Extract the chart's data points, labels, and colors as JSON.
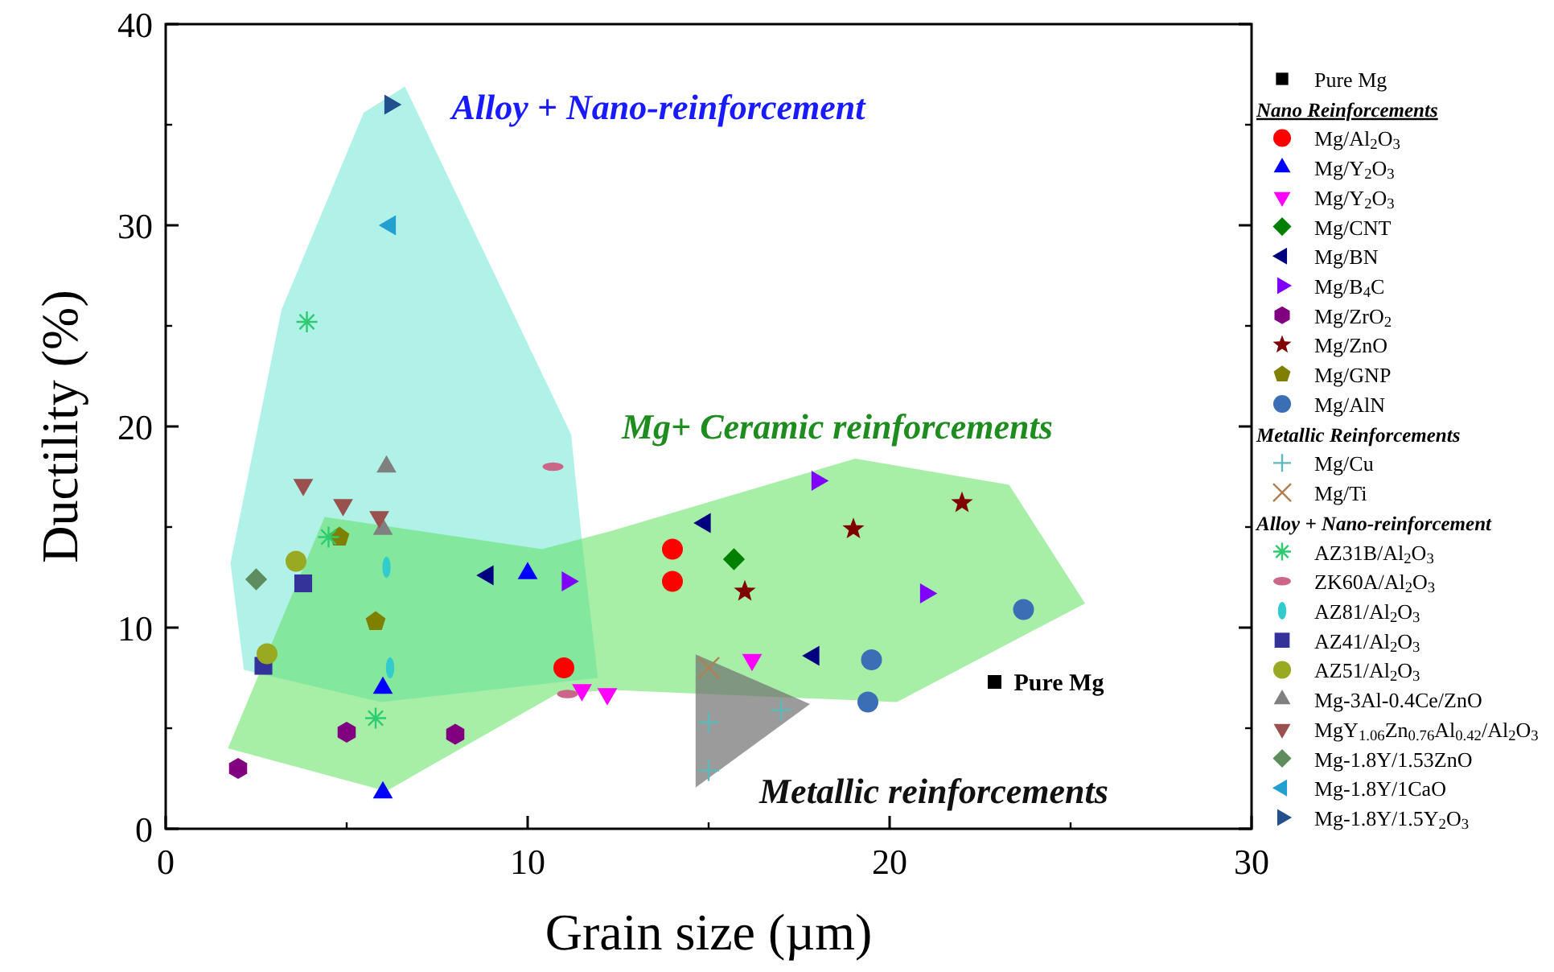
{
  "chart_data": {
    "type": "scatter",
    "xlabel": "Grain size (µm)",
    "ylabel": "Ductility (%)",
    "xlim": [
      0,
      30
    ],
    "ylim": [
      0,
      40
    ],
    "xticks": [
      0,
      10,
      20,
      30
    ],
    "yticks": [
      0,
      10,
      20,
      30,
      40
    ],
    "grid": false,
    "legend": "right",
    "annotations": [
      "Alloy + Nano-reinforcement",
      "Mg+ Ceramic reinforcements",
      "Metallic reinforcements",
      {
        "text": "Pure Mg",
        "x": 22.9,
        "y": 7.3
      },
      "Nano Reinforcements",
      "Metallic Reinforcements",
      "Alloy + Nano-reinforcement"
    ],
    "series": [
      {
        "name": "Pure Mg",
        "color": "#000000",
        "marker": "square",
        "x": [
          22.9
        ],
        "values": [
          7.3
        ]
      },
      {
        "name": "Mg/Al$_{2}$O$_{3}$",
        "color": "#ff0000",
        "marker": "circle",
        "x": [
          14,
          14,
          11
        ],
        "values": [
          13.9,
          12.3,
          8
        ]
      },
      {
        "name": "Mg/Y$_{2}$O$_{3}$",
        "color": "#0000ff",
        "marker": "triangle",
        "x": [
          10,
          6,
          6
        ],
        "values": [
          12.7,
          7,
          1.8
        ]
      },
      {
        "name": "Mg/Y$_{2}$O$_{3}$",
        "color": "#ff00ff",
        "marker": "triangle-down",
        "x": [
          11.5,
          12.2,
          16.2
        ],
        "values": [
          6.9,
          6.7,
          8.4
        ]
      },
      {
        "name": "Mg/CNT",
        "color": "#008000",
        "marker": "diamond",
        "x": [
          15.7
        ],
        "values": [
          13.4
        ]
      },
      {
        "name": "Mg/BN",
        "color": "#000080",
        "marker": "triangle-left",
        "x": [
          8.9,
          14.9,
          17.9
        ],
        "values": [
          12.6,
          15.2,
          8.6
        ]
      },
      {
        "name": "Mg/B$_{4}$C",
        "color": "#7f00ff",
        "marker": "triangle-right",
        "x": [
          11.1,
          18,
          21
        ],
        "values": [
          12.3,
          17.3,
          11.7
        ]
      },
      {
        "name": "Mg/ZrO$_{2}$",
        "color": "#800080",
        "x": [
          2,
          5,
          8
        ],
        "values": [
          3,
          4.8,
          4.7
        ]
      },
      {
        "name": "Mg/ZnO",
        "color": "#800000",
        "marker": "star",
        "x": [
          19,
          22,
          16
        ],
        "values": [
          14.9,
          16.2,
          11.8
        ]
      },
      {
        "name": "Mg/GNP",
        "color": "#808000",
        "x": [
          4.8,
          5.8
        ],
        "values": [
          14.5,
          10.3
        ]
      },
      {
        "name": "Mg/AlN",
        "color": "#3a6fb5",
        "marker": "circle",
        "x": [
          19.5,
          19.4,
          23.7
        ],
        "values": [
          8.4,
          6.3,
          10.9
        ]
      },
      {
        "name": "Mg/Cu",
        "color": "#5fb8b8",
        "marker": "cross",
        "x": [
          15,
          15,
          17
        ],
        "values": [
          5.3,
          2.9,
          5.9
        ]
      },
      {
        "name": "Mg/Ti",
        "color": "#b08050",
        "x": [
          15
        ],
        "values": [
          8
        ]
      },
      {
        "name": "AZ31B/Al$_{2}$O$_{3}$",
        "color": "#2ecc71",
        "x": [
          3.9,
          4.5,
          5.8
        ],
        "values": [
          25.2,
          14.5,
          5.5
        ]
      },
      {
        "name": "ZK60A/Al$_{2}$O$_{3}$",
        "color": "#cc6688",
        "x": [
          10.7,
          11.1
        ],
        "values": [
          18,
          6.7
        ]
      },
      {
        "name": "AZ81/Al$_{2}$O$_{3}$",
        "color": "#33cccc",
        "x": [
          6.1,
          6.2
        ],
        "values": [
          13,
          8
        ]
      },
      {
        "name": "AZ41/Al$_{2}$O$_{3}$",
        "color": "#333399",
        "marker": "square",
        "x": [
          3.8,
          2.7
        ],
        "values": [
          12.2,
          8.1
        ]
      },
      {
        "name": "AZ51/Al$_{2}$O$_{3}$",
        "color": "#99aa22",
        "marker": "circle",
        "x": [
          3.6,
          2.8
        ],
        "values": [
          13.3,
          8.7
        ]
      },
      {
        "name": "Mg-3Al-0.4Ce/ZnO",
        "color": "#808080",
        "marker": "triangle",
        "x": [
          6.1,
          6
        ],
        "values": [
          18,
          14.9
        ]
      },
      {
        "name": "MgY$_{1.06}$Zn$_{0.76}$Al$_{0.42}$/Al$_{2}$O$_{3}$",
        "color": "#9b5050",
        "marker": "triangle-down",
        "x": [
          3.8,
          4.9,
          5.9
        ],
        "values": [
          17.1,
          16.1,
          15.5
        ]
      },
      {
        "name": "Mg-1.8Y/1.53ZnO",
        "color": "#5e8c5e",
        "marker": "diamond",
        "x": [
          2.5
        ],
        "values": [
          12.4
        ]
      },
      {
        "name": "Mg-1.8Y/1CaO",
        "color": "#22a0d0",
        "marker": "triangle-left",
        "x": [
          6.2
        ],
        "values": [
          30
        ]
      },
      {
        "name": "Mg-1.8Y/1.5Y$_{2}$O$_{3}$",
        "color": "#22508c",
        "marker": "triangle-right",
        "x": [
          6.2
        ],
        "values": [
          36
        ]
      }
    ]
  }
}
